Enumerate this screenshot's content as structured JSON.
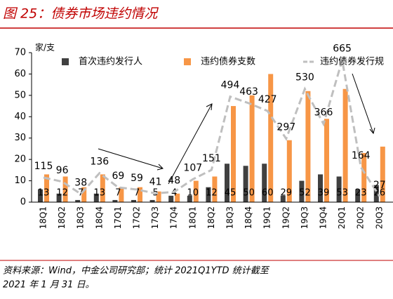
{
  "chart_data": {
    "type": "bar",
    "title": "图 25：债券市场违约情况",
    "y_unit_label": "家/支",
    "source": "资料来源：Wind，中金公司研究部；统计 2021Q1YTD 统计截至",
    "source_line2": "2021 年 1 月 31 日。",
    "categories": [
      "18Q1",
      "18Q2",
      "18Q3",
      "18Q4",
      "17Q1",
      "17Q2",
      "17Q3",
      "17Q4",
      "18Q1",
      "18Q2",
      "18Q3",
      "18Q4",
      "19Q1",
      "19Q2",
      "19Q3",
      "19Q4",
      "20Q1",
      "20Q2",
      "20Q3"
    ],
    "ylim": [
      0,
      70
    ],
    "yticks": [
      0,
      10,
      20,
      30,
      40,
      50,
      60,
      70
    ],
    "y2lim": [
      0,
      700
    ],
    "series": [
      {
        "name": "首次违约发行人",
        "color": "#404040",
        "values": [
          6,
          4,
          1,
          4,
          1,
          1,
          1,
          3,
          3,
          7,
          18,
          17,
          18,
          3,
          10,
          13,
          12,
          6,
          8
        ]
      },
      {
        "name": "违约债券支数",
        "color": "#f79646",
        "values": [
          13,
          12,
          7,
          13,
          7,
          7,
          5,
          4,
          10,
          12,
          45,
          50,
          60,
          29,
          52,
          39,
          53,
          23,
          26
        ]
      },
      {
        "name": "违约债券发行规",
        "color": "#bfbfbf",
        "axis": "y2",
        "type": "line",
        "values": [
          115,
          96,
          38,
          136,
          69,
          59,
          41,
          48,
          107,
          151,
          494,
          463,
          427,
          297,
          530,
          366,
          665,
          164,
          27
        ]
      }
    ]
  }
}
